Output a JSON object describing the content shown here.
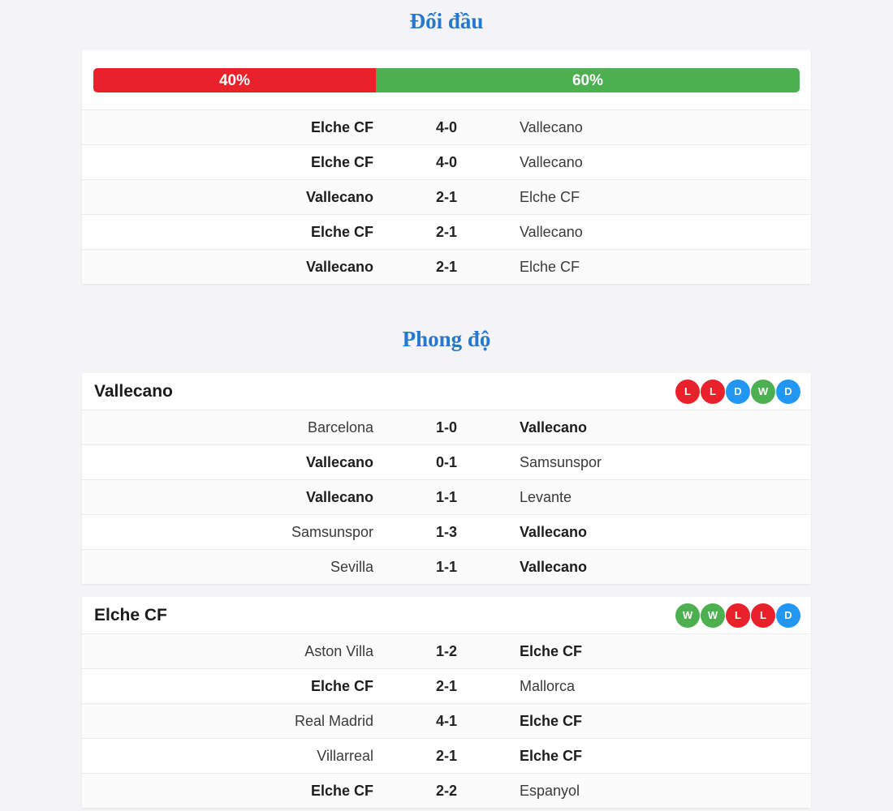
{
  "sections": {
    "h2h": {
      "title": "Đối đầu",
      "bar": {
        "home_percent": 40,
        "away_percent": 60,
        "home_label": "40%",
        "away_label": "60%"
      },
      "matches": [
        {
          "home": "Elche CF",
          "score": "4-0",
          "away": "Vallecano",
          "bold": "home"
        },
        {
          "home": "Elche CF",
          "score": "4-0",
          "away": "Vallecano",
          "bold": "home"
        },
        {
          "home": "Vallecano",
          "score": "2-1",
          "away": "Elche CF",
          "bold": "home"
        },
        {
          "home": "Elche CF",
          "score": "2-1",
          "away": "Vallecano",
          "bold": "home"
        },
        {
          "home": "Vallecano",
          "score": "2-1",
          "away": "Elche CF",
          "bold": "home"
        }
      ]
    },
    "form": {
      "title": "Phong độ",
      "teams": [
        {
          "name": "Vallecano",
          "recent_results": [
            "L",
            "L",
            "D",
            "W",
            "D"
          ],
          "matches": [
            {
              "home": "Barcelona",
              "score": "1-0",
              "away": "Vallecano",
              "bold": "away"
            },
            {
              "home": "Vallecano",
              "score": "0-1",
              "away": "Samsunspor",
              "bold": "home"
            },
            {
              "home": "Vallecano",
              "score": "1-1",
              "away": "Levante",
              "bold": "home"
            },
            {
              "home": "Samsunspor",
              "score": "1-3",
              "away": "Vallecano",
              "bold": "away"
            },
            {
              "home": "Sevilla",
              "score": "1-1",
              "away": "Vallecano",
              "bold": "away"
            }
          ]
        },
        {
          "name": "Elche CF",
          "recent_results": [
            "W",
            "W",
            "L",
            "L",
            "D"
          ],
          "matches": [
            {
              "home": "Aston Villa",
              "score": "1-2",
              "away": "Elche CF",
              "bold": "away"
            },
            {
              "home": "Elche CF",
              "score": "2-1",
              "away": "Mallorca",
              "bold": "home"
            },
            {
              "home": "Real Madrid",
              "score": "4-1",
              "away": "Elche CF",
              "bold": "away"
            },
            {
              "home": "Villarreal",
              "score": "2-1",
              "away": "Elche CF",
              "bold": "away"
            },
            {
              "home": "Elche CF",
              "score": "2-2",
              "away": "Espanyol",
              "bold": "home"
            }
          ]
        }
      ]
    }
  },
  "colors": {
    "title_blue": "#2478cf",
    "bar_red": "#e9212a",
    "bar_green": "#4caf50",
    "badge_win_green": "#4caf50",
    "badge_loss_red": "#e9212a",
    "badge_draw_blue": "#2196f3"
  },
  "badge_semantics": {
    "W": "win",
    "L": "loss",
    "D": "draw"
  }
}
